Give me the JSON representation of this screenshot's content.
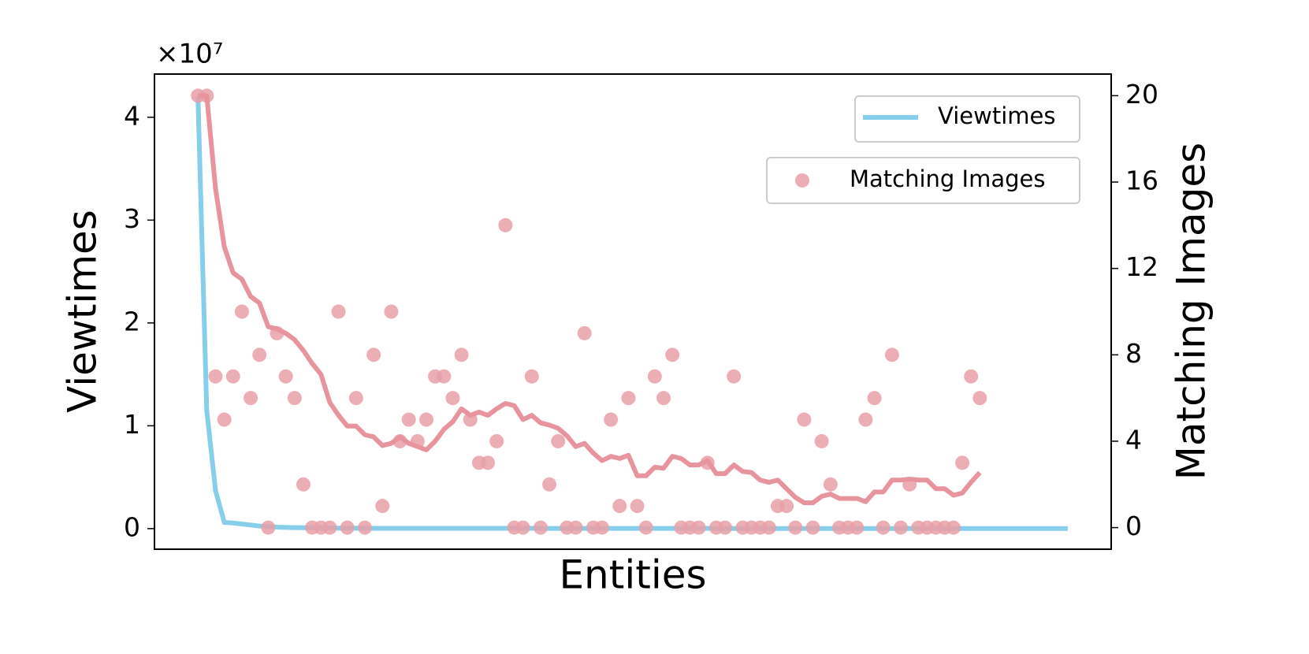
{
  "chart_data": {
    "type": "combo",
    "x_label": "Entities",
    "y_label": "Viewtimes",
    "y2_label": "Matching Images",
    "y_offset_label": "×10⁷",
    "xlim": [
      -4.95,
      103.95
    ],
    "ylim": [
      -0.2,
      4.42
    ],
    "yticks": [
      0,
      1,
      2,
      3,
      4
    ],
    "y2lim": [
      -1,
      21
    ],
    "y2ticks": [
      0,
      4,
      8,
      12,
      16,
      20
    ],
    "grid": false,
    "legend": "upper right",
    "x": [
      0,
      1,
      2,
      3,
      4,
      5,
      6,
      7,
      8,
      9,
      10,
      11,
      12,
      13,
      14,
      15,
      16,
      17,
      18,
      19,
      20,
      21,
      22,
      23,
      24,
      25,
      26,
      27,
      28,
      29,
      30,
      31,
      32,
      33,
      34,
      35,
      36,
      37,
      38,
      39,
      40,
      41,
      42,
      43,
      44,
      45,
      46,
      47,
      48,
      49,
      50,
      51,
      52,
      53,
      54,
      55,
      56,
      57,
      58,
      59,
      60,
      61,
      62,
      63,
      64,
      65,
      66,
      67,
      68,
      69,
      70,
      71,
      72,
      73,
      74,
      75,
      76,
      77,
      78,
      79,
      80,
      81,
      82,
      83,
      84,
      85,
      86,
      87,
      88,
      89,
      90,
      91,
      92,
      93,
      94,
      95,
      96,
      97,
      98,
      99
    ],
    "series": [
      {
        "name": "Viewtimes",
        "type": "line",
        "axis": "y",
        "color": "#87ceeb",
        "values": [
          4.2,
          1.15,
          0.37,
          0.06,
          0.055,
          0.045,
          0.035,
          0.025,
          0.02,
          0.015,
          0.012,
          0.01,
          0.009,
          0.008,
          0.007,
          0.006,
          0.005,
          0.005,
          0.004,
          0.004,
          0.003,
          0.003,
          0.003,
          0.003,
          0.003,
          0.003,
          0.003,
          0.003,
          0.003,
          0.003,
          0.003,
          0.003,
          0.003,
          0.003,
          0.003,
          0.003,
          0.003,
          0.003,
          0.003,
          0.003,
          0.002,
          0.002,
          0.002,
          0.002,
          0.002,
          0.002,
          0.002,
          0.002,
          0.002,
          0.002,
          0.002,
          0.002,
          0.002,
          0.002,
          0.002,
          0.002,
          0.002,
          0.002,
          0.002,
          0.002,
          0.001,
          0.001,
          0.001,
          0.001,
          0.001,
          0.001,
          0.001,
          0.001,
          0.001,
          0.001,
          0.001,
          0.001,
          0.001,
          0.001,
          0.001,
          0.001,
          0.001,
          0.001,
          0.001,
          0.001,
          0.001,
          0.001,
          0.001,
          0.001,
          0.001,
          0.001,
          0.001,
          0.001,
          0.001,
          0.001,
          0.001,
          0.001,
          0.001,
          0.001,
          0.001,
          0.001,
          0.001,
          0.001,
          0.001,
          0.001
        ]
      },
      {
        "name": "Matching Images",
        "type": "scatter",
        "axis": "y2",
        "color": "#e8a0a8",
        "values": [
          20,
          20,
          7,
          5,
          7,
          10,
          6,
          8,
          0,
          9,
          7,
          6,
          2,
          0,
          0,
          0,
          10,
          0,
          6,
          0,
          8,
          1,
          10,
          4,
          5,
          4,
          5,
          7,
          7,
          6,
          8,
          5,
          3,
          3,
          4,
          14,
          0,
          0,
          7,
          0,
          2,
          4,
          0,
          0,
          9,
          0,
          0,
          5,
          1,
          6,
          1,
          0,
          7,
          6,
          8,
          0,
          0,
          0,
          3,
          0,
          0,
          7,
          0,
          0,
          0,
          0,
          1,
          1,
          0,
          5,
          0,
          4,
          2,
          0,
          0,
          0,
          5,
          6,
          0,
          8,
          0,
          2,
          0,
          0,
          0,
          0,
          0,
          3,
          7,
          6,
          null,
          null,
          null,
          null,
          null,
          null,
          null,
          null,
          null,
          null
        ]
      },
      {
        "type": "line",
        "axis": "y2",
        "color": "#e8949e",
        "values": [
          20,
          20,
          15.7,
          13.0,
          11.8,
          11.5,
          10.7,
          10.4,
          9.3,
          9.2,
          9.0,
          8.7,
          8.2,
          7.6,
          7.1,
          5.8,
          5.2,
          4.7,
          4.7,
          4.3,
          4.2,
          3.8,
          3.9,
          4.2,
          3.9,
          3.75,
          3.6,
          4.0,
          4.55,
          4.9,
          5.5,
          5.2,
          5.35,
          5.2,
          5.5,
          5.75,
          5.65,
          5.0,
          5.2,
          4.85,
          4.75,
          4.6,
          4.25,
          3.75,
          3.9,
          3.45,
          3.1,
          3.3,
          3.2,
          3.35,
          2.4,
          2.4,
          2.8,
          2.75,
          3.3,
          3.2,
          2.9,
          2.9,
          3.1,
          2.5,
          2.5,
          2.9,
          2.6,
          2.55,
          2.2,
          2.1,
          2.2,
          1.8,
          1.4,
          1.15,
          1.15,
          1.45,
          1.55,
          1.35,
          1.35,
          1.35,
          1.2,
          1.65,
          1.65,
          2.2,
          2.2,
          2.25,
          2.2,
          2.2,
          1.8,
          1.8,
          1.5,
          1.6,
          2.1,
          2.55,
          null,
          null,
          null,
          null,
          null,
          null,
          null,
          null,
          null,
          null
        ]
      }
    ]
  }
}
